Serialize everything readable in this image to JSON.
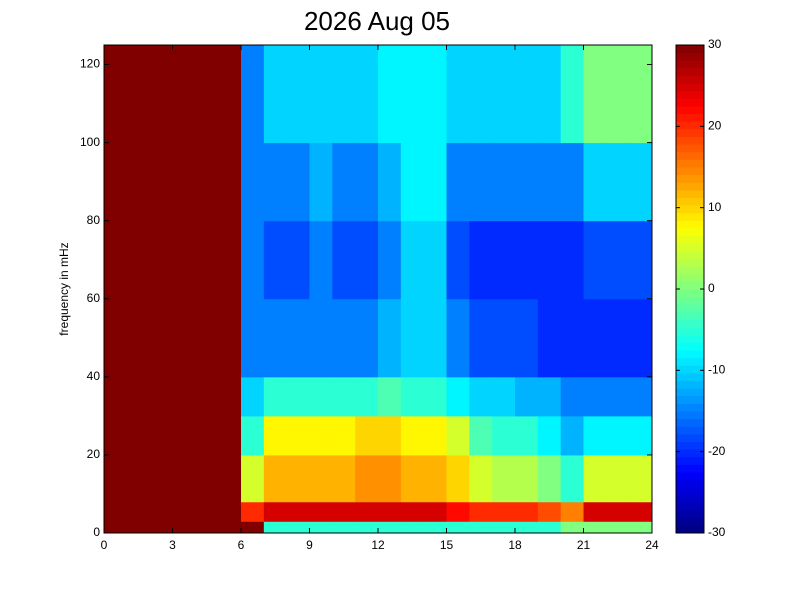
{
  "chart_data": {
    "type": "heatmap",
    "title": "2026 Aug 05",
    "y_label": "frequency in mHz",
    "colormap": "jet",
    "x_bins": [
      0,
      1,
      2,
      3,
      4,
      5,
      6,
      7,
      8,
      9,
      10,
      11,
      12,
      13,
      14,
      15,
      16,
      17,
      18,
      19,
      20,
      21,
      22,
      23,
      24
    ],
    "y_bins": [
      0,
      3,
      8,
      20,
      30,
      40,
      60,
      80,
      100,
      125
    ],
    "z": [
      [
        30,
        30,
        30,
        30,
        30,
        30,
        30,
        30,
        30
      ],
      [
        30,
        30,
        30,
        30,
        30,
        30,
        30,
        30,
        30
      ],
      [
        30,
        30,
        30,
        30,
        30,
        30,
        30,
        30,
        30
      ],
      [
        30,
        30,
        30,
        30,
        30,
        30,
        30,
        30,
        30
      ],
      [
        30,
        30,
        30,
        30,
        30,
        30,
        30,
        30,
        30
      ],
      [
        30,
        30,
        30,
        30,
        30,
        30,
        30,
        30,
        30
      ],
      [
        30,
        20,
        5,
        -5,
        -10,
        -15,
        -15,
        -15,
        -15
      ],
      [
        -5,
        25,
        12,
        8,
        -5,
        -15,
        -18,
        -15,
        -10
      ],
      [
        -5,
        25,
        12,
        8,
        -5,
        -15,
        -18,
        -15,
        -10
      ],
      [
        -5,
        25,
        12,
        8,
        -5,
        -15,
        -15,
        -12,
        -10
      ],
      [
        -5,
        25,
        12,
        8,
        -5,
        -15,
        -18,
        -15,
        -10
      ],
      [
        -5,
        25,
        14,
        10,
        -5,
        -15,
        -18,
        -15,
        -10
      ],
      [
        -5,
        25,
        14,
        10,
        -3,
        -12,
        -15,
        -12,
        -8
      ],
      [
        -5,
        25,
        12,
        8,
        -5,
        -10,
        -10,
        -8,
        -8
      ],
      [
        -5,
        25,
        12,
        8,
        -5,
        -10,
        -10,
        -8,
        -8
      ],
      [
        -5,
        22,
        10,
        5,
        -8,
        -15,
        -18,
        -15,
        -10
      ],
      [
        -5,
        20,
        5,
        -3,
        -10,
        -18,
        -20,
        -15,
        -10
      ],
      [
        -5,
        20,
        3,
        -5,
        -10,
        -18,
        -20,
        -15,
        -10
      ],
      [
        -5,
        20,
        3,
        -5,
        -12,
        -18,
        -20,
        -15,
        -10
      ],
      [
        -5,
        18,
        0,
        -8,
        -12,
        -20,
        -20,
        -15,
        -10
      ],
      [
        0,
        15,
        -5,
        -12,
        -15,
        -20,
        -20,
        -15,
        -5
      ],
      [
        0,
        25,
        5,
        -8,
        -15,
        -20,
        -18,
        -10,
        0
      ],
      [
        0,
        25,
        5,
        -8,
        -15,
        -20,
        -18,
        -10,
        0
      ],
      [
        0,
        25,
        5,
        -8,
        -15,
        -20,
        -18,
        -10,
        0
      ]
    ],
    "xlim": [
      0,
      24
    ],
    "xticks": [
      0,
      3,
      6,
      9,
      12,
      15,
      18,
      21,
      24
    ],
    "ylim": [
      0,
      125
    ],
    "yticks": [
      0,
      20,
      40,
      60,
      80,
      100,
      120
    ],
    "clim": [
      -30,
      30
    ],
    "cticks": [
      -30,
      -20,
      -10,
      0,
      10,
      20,
      30
    ]
  }
}
